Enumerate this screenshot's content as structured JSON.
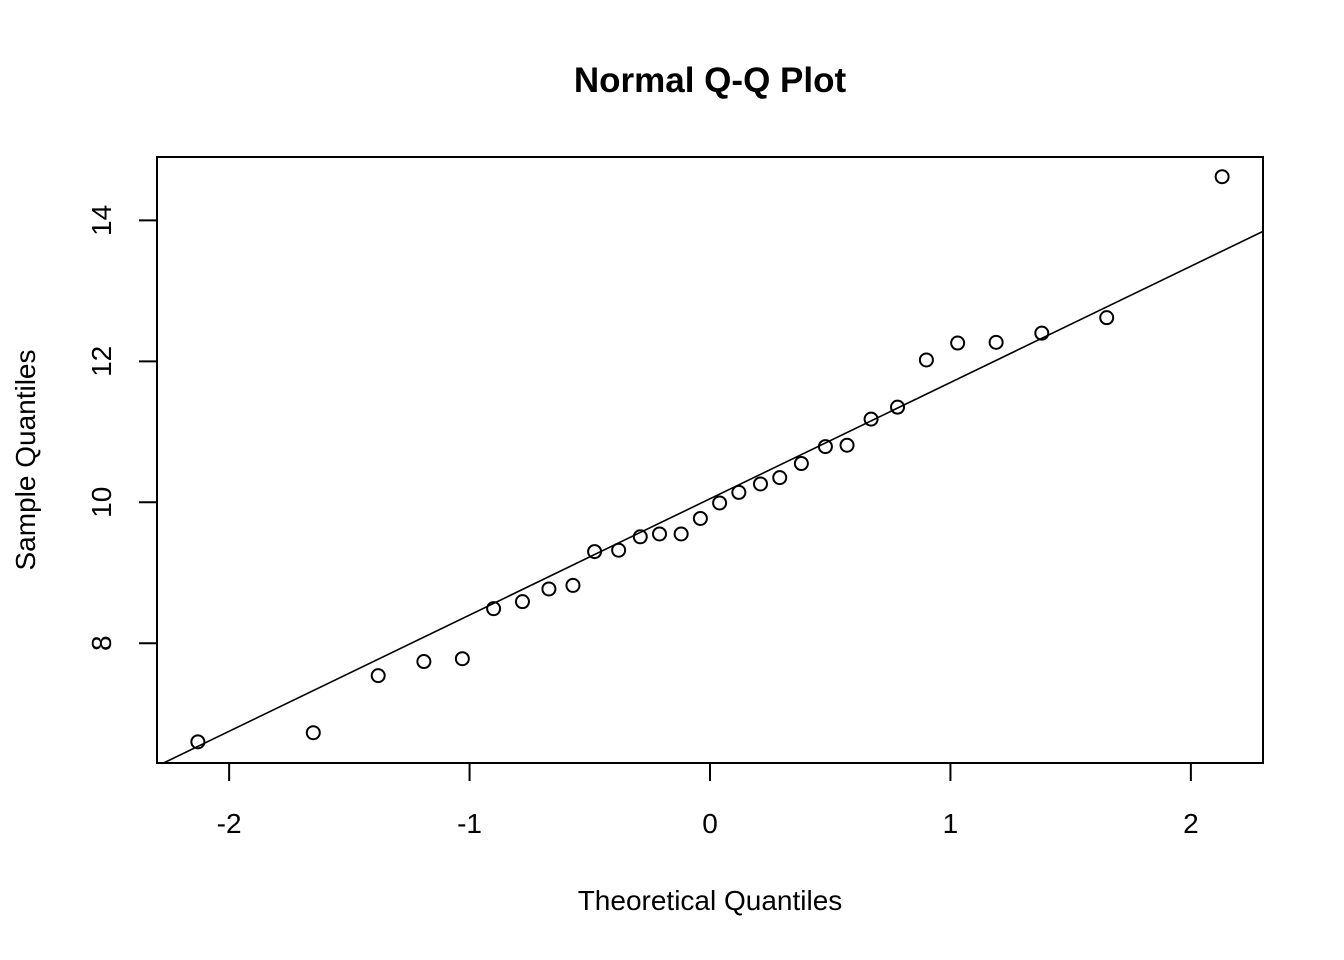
{
  "chart_data": {
    "type": "scatter",
    "title": "Normal Q-Q Plot",
    "xlabel": "Theoretical Quantiles",
    "ylabel": "Sample Quantiles",
    "xlim": [
      -2.3,
      2.3
    ],
    "ylim": [
      6.3,
      14.9
    ],
    "xticks": [
      -2,
      -1,
      0,
      1,
      2
    ],
    "yticks": [
      8,
      10,
      12,
      14
    ],
    "grid": false,
    "reference_line": {
      "slope": 1.65,
      "intercept": 10.05
    },
    "points": [
      {
        "x": -2.13,
        "y": 6.6
      },
      {
        "x": -1.65,
        "y": 6.73
      },
      {
        "x": -1.38,
        "y": 7.54
      },
      {
        "x": -1.19,
        "y": 7.74
      },
      {
        "x": -1.03,
        "y": 7.78
      },
      {
        "x": -0.9,
        "y": 8.49
      },
      {
        "x": -0.78,
        "y": 8.59
      },
      {
        "x": -0.67,
        "y": 8.77
      },
      {
        "x": -0.57,
        "y": 8.82
      },
      {
        "x": -0.48,
        "y": 9.3
      },
      {
        "x": -0.38,
        "y": 9.32
      },
      {
        "x": -0.29,
        "y": 9.51
      },
      {
        "x": -0.21,
        "y": 9.55
      },
      {
        "x": -0.12,
        "y": 9.55
      },
      {
        "x": -0.04,
        "y": 9.77
      },
      {
        "x": 0.04,
        "y": 9.99
      },
      {
        "x": 0.12,
        "y": 10.14
      },
      {
        "x": 0.21,
        "y": 10.26
      },
      {
        "x": 0.29,
        "y": 10.35
      },
      {
        "x": 0.38,
        "y": 10.55
      },
      {
        "x": 0.48,
        "y": 10.79
      },
      {
        "x": 0.57,
        "y": 10.81
      },
      {
        "x": 0.67,
        "y": 11.18
      },
      {
        "x": 0.78,
        "y": 11.35
      },
      {
        "x": 0.9,
        "y": 12.02
      },
      {
        "x": 1.03,
        "y": 12.26
      },
      {
        "x": 1.19,
        "y": 12.27
      },
      {
        "x": 1.38,
        "y": 12.4
      },
      {
        "x": 1.65,
        "y": 12.62
      },
      {
        "x": 2.13,
        "y": 14.62
      }
    ]
  }
}
